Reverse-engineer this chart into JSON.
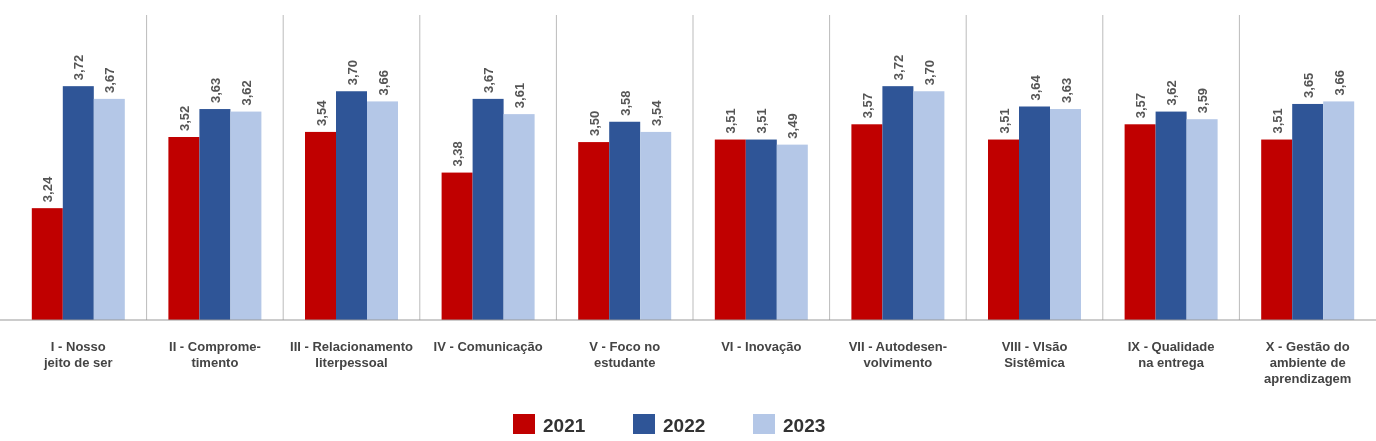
{
  "chart_data": {
    "type": "bar",
    "categories": [
      "I - Nosso\njeito de ser",
      "II - Comprome-\ntimento",
      "III - Relacionamento\nIiterpessoal",
      "IV - Comunicação",
      "V - Foco no\nestudante",
      "VI - Inovação",
      "VII - Autodesen-\nvolvimento",
      "VIII - VIsão\nSistêmica",
      "IX - Qualidade\nna entrega",
      "X - Gestão do\nambiente de\naprendizagem"
    ],
    "series": [
      {
        "name": "2021",
        "color": "#c00000",
        "values": [
          3.24,
          3.52,
          3.54,
          3.38,
          3.5,
          3.51,
          3.57,
          3.51,
          3.57,
          3.51
        ],
        "value_labels": [
          "3,24",
          "3,52",
          "3,54",
          "3,38",
          "3,50",
          "3,51",
          "3,57",
          "3,51",
          "3,57",
          "3,51"
        ]
      },
      {
        "name": "2022",
        "color": "#2f5597",
        "values": [
          3.72,
          3.63,
          3.7,
          3.67,
          3.58,
          3.51,
          3.72,
          3.64,
          3.62,
          3.65
        ],
        "value_labels": [
          "3,72",
          "3,63",
          "3,70",
          "3,67",
          "3,58",
          "3,51",
          "3,72",
          "3,64",
          "3,62",
          "3,65"
        ]
      },
      {
        "name": "2023",
        "color": "#b4c7e7",
        "values": [
          3.67,
          3.62,
          3.66,
          3.61,
          3.54,
          3.49,
          3.7,
          3.63,
          3.59,
          3.66
        ],
        "value_labels": [
          "3,67",
          "3,62",
          "3,66",
          "3,61",
          "3,54",
          "3,49",
          "3,70",
          "3,63",
          "3,59",
          "3,66"
        ]
      }
    ],
    "ylim": [
      2.8,
      4.0
    ],
    "legend": "bottom",
    "tick_labels": "x"
  }
}
